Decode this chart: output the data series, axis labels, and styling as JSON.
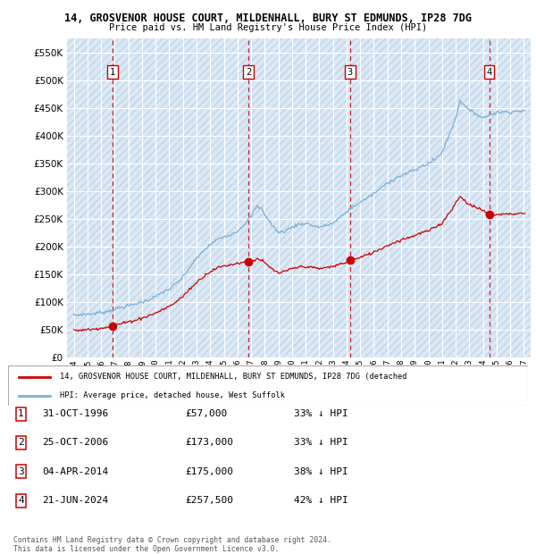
{
  "title1": "14, GROSVENOR HOUSE COURT, MILDENHALL, BURY ST EDMUNDS, IP28 7DG",
  "title2": "Price paid vs. HM Land Registry's House Price Index (HPI)",
  "legend_label_red": "14, GROSVENOR HOUSE COURT, MILDENHALL, BURY ST EDMUNDS, IP28 7DG (detached",
  "legend_label_blue": "HPI: Average price, detached house, West Suffolk",
  "footer1": "Contains HM Land Registry data © Crown copyright and database right 2024.",
  "footer2": "This data is licensed under the Open Government Licence v3.0.",
  "ylim": [
    0,
    575000
  ],
  "yticks": [
    0,
    50000,
    100000,
    150000,
    200000,
    250000,
    300000,
    350000,
    400000,
    450000,
    500000,
    550000
  ],
  "ytick_labels": [
    "£0",
    "£50K",
    "£100K",
    "£150K",
    "£200K",
    "£250K",
    "£300K",
    "£350K",
    "£400K",
    "£450K",
    "£500K",
    "£550K"
  ],
  "xlim_start": 1993.5,
  "xlim_end": 2027.5,
  "xticks": [
    1994,
    1995,
    1996,
    1997,
    1998,
    1999,
    2000,
    2001,
    2002,
    2003,
    2004,
    2005,
    2006,
    2007,
    2008,
    2009,
    2010,
    2011,
    2012,
    2013,
    2014,
    2015,
    2016,
    2017,
    2018,
    2019,
    2020,
    2021,
    2022,
    2023,
    2024,
    2025,
    2026,
    2027
  ],
  "sale_dates": [
    1996.83,
    2006.81,
    2014.26,
    2024.47
  ],
  "sale_prices": [
    57000,
    173000,
    175000,
    257500
  ],
  "sale_labels": [
    "1",
    "2",
    "3",
    "4"
  ],
  "background_color": "#dce9f5",
  "hatch_color": "#c0d5e8",
  "grid_color": "#ffffff",
  "red_line_color": "#cc0000",
  "blue_line_color": "#7ab0d8",
  "dashed_line_color": "#cc0000"
}
